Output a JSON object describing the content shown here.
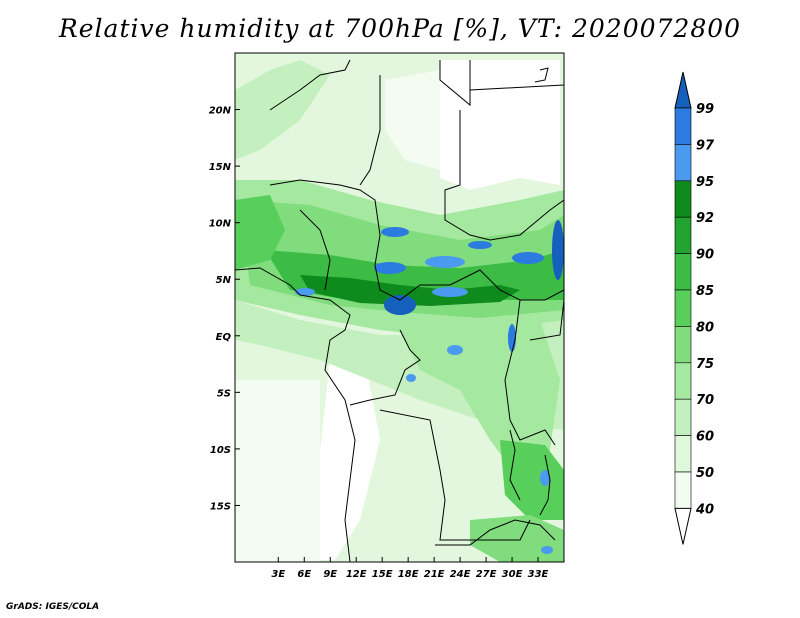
{
  "title": "Relative humidity at 700hPa [%], VT: 2020072800",
  "credit": "GrADS: IGES/COLA",
  "map": {
    "lon_range": [
      -2,
      36
    ],
    "lat_range": [
      -20,
      25
    ],
    "lon_ticks": [
      "3E",
      "6E",
      "9E",
      "12E",
      "15E",
      "18E",
      "21E",
      "24E",
      "27E",
      "30E",
      "33E"
    ],
    "lon_tick_values": [
      3,
      6,
      9,
      12,
      15,
      18,
      21,
      24,
      27,
      30,
      33
    ],
    "lat_ticks": [
      "20N",
      "15N",
      "10N",
      "5N",
      "EQ",
      "5S",
      "10S",
      "15S"
    ],
    "lat_tick_values": [
      20,
      15,
      10,
      5,
      0,
      -5,
      -10,
      -15
    ]
  },
  "colorbar": {
    "levels": [
      "99",
      "97",
      "95",
      "92",
      "90",
      "85",
      "80",
      "75",
      "70",
      "60",
      "50",
      "40"
    ],
    "colors": [
      "#1560bd",
      "#2b7be0",
      "#4a9af0",
      "#0f8a1c",
      "#23a430",
      "#3cbc45",
      "#58cf5b",
      "#80dc7c",
      "#a5e8a0",
      "#c4f0bf",
      "#dff8db",
      "#f2fcf0"
    ]
  }
}
